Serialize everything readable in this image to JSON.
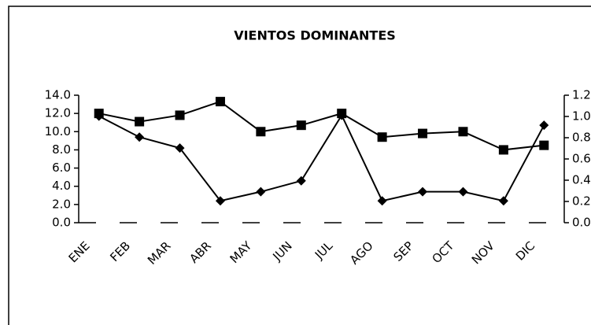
{
  "chart_data": {
    "type": "line",
    "title": "VIENTOS DOMINANTES",
    "categories": [
      "ENE",
      "FEB",
      "MAR",
      "ABR",
      "MAY",
      "JUN",
      "JUL",
      "AGO",
      "SEP",
      "OCT",
      "NOV",
      "DIC"
    ],
    "series": [
      {
        "color": "#000000",
        "marker": "square",
        "values": [
          12.0,
          11.1,
          11.8,
          13.3,
          10.0,
          10.7,
          12.0,
          9.4,
          9.8,
          10.0,
          8.0,
          8.5
        ]
      },
      {
        "color": "#000000",
        "marker": "diamond",
        "values": [
          11.7,
          9.4,
          8.2,
          2.4,
          3.4,
          4.6,
          11.8,
          2.4,
          3.4,
          3.4,
          2.4,
          10.7
        ]
      }
    ],
    "ylim": [
      0,
      14
    ],
    "yticks": [
      {
        "value": 0,
        "label": "0.0"
      },
      {
        "value": 2,
        "label": "2.0"
      },
      {
        "value": 4,
        "label": "4.0"
      },
      {
        "value": 6,
        "label": "6.0"
      },
      {
        "value": 8,
        "label": "8.0"
      },
      {
        "value": 10,
        "label": "10.0"
      },
      {
        "value": 12,
        "label": "12.0"
      },
      {
        "value": 14,
        "label": "14.0"
      }
    ],
    "y2lim": [
      0,
      1.2
    ],
    "y2ticks": [
      {
        "value": 0,
        "label": "0.0"
      },
      0.2,
      0.4,
      0.6,
      0.8,
      {
        "value": 1,
        "label": "1.0"
      },
      1.2
    ]
  }
}
